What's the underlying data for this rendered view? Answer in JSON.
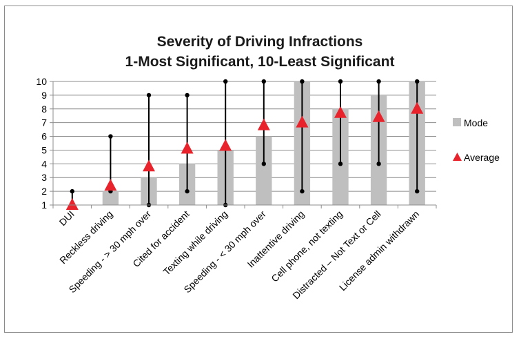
{
  "chart_data": {
    "type": "bar",
    "title_lines": [
      "Severity of Driving Infractions",
      "1-Most Significant, 10-Least Significant"
    ],
    "categories": [
      "DUI",
      "Reckless driving",
      "Speeding - > 30 mph over",
      "Cited for accident",
      "Texting while driving",
      "Speeding - < 30 mph over",
      "Inattentive driving",
      "Cell phone, not texting",
      "Distracted – Not Text or Cell",
      "License admin withdrawn"
    ],
    "yticks": [
      "1",
      "2",
      "3",
      "4",
      "5",
      "6",
      "7",
      "8",
      "9",
      "10"
    ],
    "ylim": [
      1,
      10
    ],
    "series": [
      {
        "name": "Mode",
        "kind": "bar",
        "color": "#bfbfbf",
        "values": [
          1,
          2,
          3,
          4,
          5,
          6,
          10,
          8,
          9,
          10
        ]
      },
      {
        "name": "Average",
        "kind": "marker",
        "color": "#e8232b",
        "values": [
          1.0,
          2.4,
          3.8,
          5.1,
          5.3,
          6.8,
          7.0,
          7.7,
          7.4,
          8.0
        ]
      }
    ],
    "range": {
      "min": [
        1,
        2,
        1,
        2,
        1,
        4,
        2,
        4,
        4,
        2
      ],
      "max": [
        2,
        6,
        9,
        9,
        10,
        10,
        10,
        10,
        10,
        10
      ],
      "color": "#000000"
    },
    "grid": true,
    "legend_position": "right"
  }
}
